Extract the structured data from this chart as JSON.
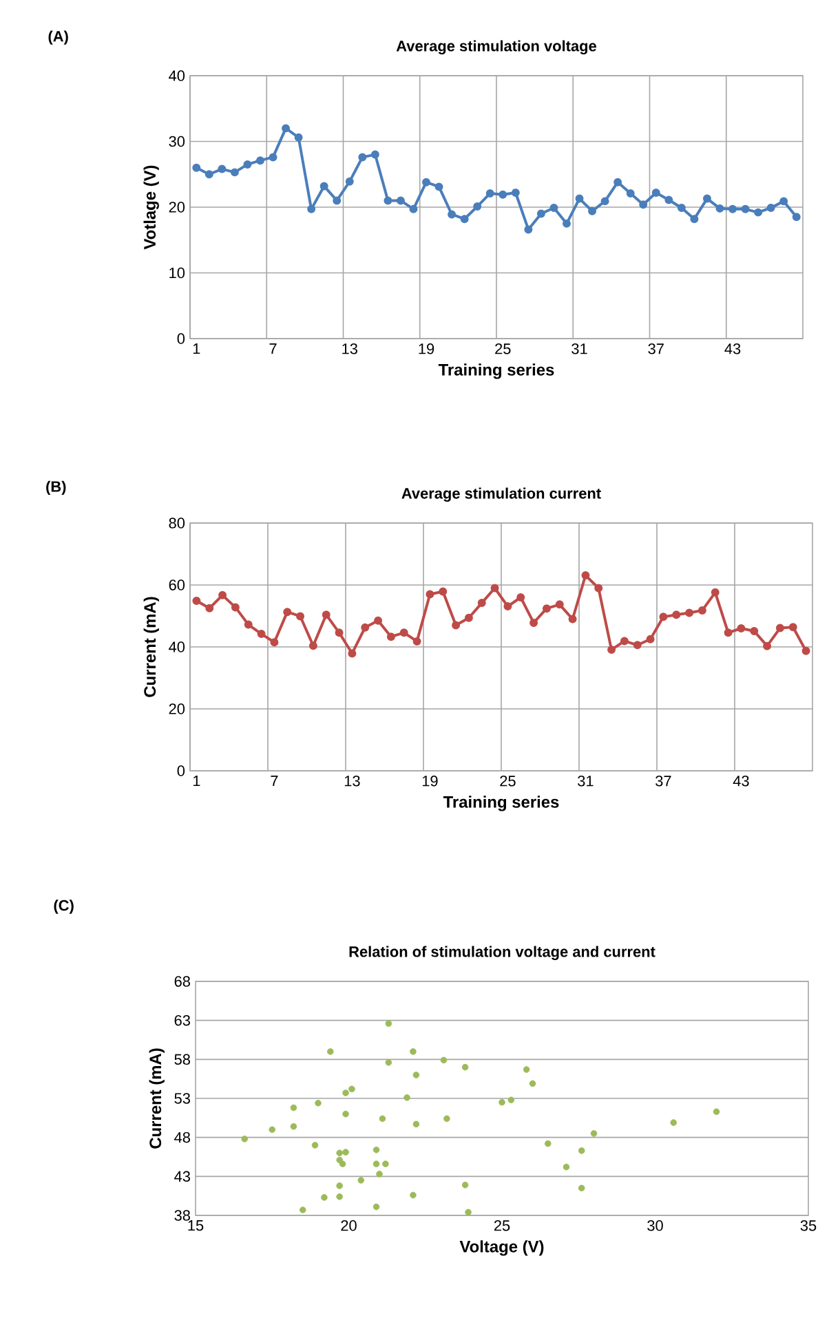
{
  "chart_data": [
    {
      "type": "line",
      "title": "Average  stimulation voltage",
      "xlabel": "Training series",
      "ylabel": "Votlage (V)",
      "annotations": [
        "(A)"
      ],
      "categories": [
        "1",
        null,
        null,
        null,
        null,
        null,
        "7",
        null,
        null,
        null,
        null,
        null,
        "13",
        null,
        null,
        null,
        null,
        null,
        "19",
        null,
        null,
        null,
        null,
        null,
        "25",
        null,
        null,
        null,
        null,
        null,
        "31",
        null,
        null,
        null,
        null,
        null,
        "37",
        null,
        null,
        null,
        null,
        null,
        "43",
        null,
        null,
        null,
        null,
        null
      ],
      "series": [
        {
          "color": "#4a7ebb",
          "values": [
            26.0,
            25.0,
            25.8,
            25.3,
            26.5,
            27.1,
            27.6,
            32.0,
            30.6,
            19.7,
            23.2,
            21.0,
            23.9,
            27.6,
            28.0,
            21.0,
            21.0,
            19.7,
            23.8,
            23.1,
            18.9,
            18.2,
            20.1,
            22.1,
            21.9,
            22.2,
            16.6,
            19.0,
            19.9,
            17.5,
            21.3,
            19.4,
            20.9,
            23.8,
            22.1,
            20.4,
            22.2,
            21.1,
            19.9,
            18.2,
            21.3,
            19.8,
            19.7,
            19.7,
            19.2,
            19.9,
            20.9,
            18.5
          ]
        }
      ],
      "ylim": [
        0,
        40
      ],
      "yticks": [
        0,
        10,
        20,
        30,
        40
      ],
      "grid": true,
      "marker": "circle",
      "line_style": "solid"
    },
    {
      "type": "line",
      "title": "Average stimulation current",
      "xlabel": "Training series",
      "ylabel": "Current (mA)",
      "annotations": [
        "(B)"
      ],
      "categories": [
        "1",
        null,
        null,
        null,
        null,
        null,
        "7",
        null,
        null,
        null,
        null,
        null,
        "13",
        null,
        null,
        null,
        null,
        null,
        "19",
        null,
        null,
        null,
        null,
        null,
        "25",
        null,
        null,
        null,
        null,
        null,
        "31",
        null,
        null,
        null,
        null,
        null,
        "37",
        null,
        null,
        null,
        null,
        null,
        "43",
        null,
        null,
        null,
        null,
        null
      ],
      "series": [
        {
          "color": "#be4b48",
          "values": [
            54.9,
            52.5,
            56.7,
            52.8,
            47.2,
            44.2,
            41.5,
            51.3,
            49.9,
            40.4,
            50.4,
            44.6,
            37.9,
            46.3,
            48.5,
            43.3,
            44.6,
            41.8,
            57.0,
            57.9,
            47.0,
            49.4,
            54.2,
            59.0,
            53.1,
            56.0,
            47.8,
            52.4,
            53.7,
            49.0,
            63.1,
            59.0,
            39.1,
            41.9,
            40.6,
            42.5,
            49.7,
            50.4,
            51.0,
            51.8,
            57.6,
            44.6,
            46.0,
            45.1,
            40.3,
            46.1,
            46.4,
            38.7
          ]
        }
      ],
      "ylim": [
        0,
        80
      ],
      "yticks": [
        0,
        20,
        40,
        60,
        80
      ],
      "grid": true,
      "marker": "circle",
      "line_style": "solid"
    },
    {
      "type": "scatter",
      "title": "Relation of stimulation voltage and current",
      "xlabel": "Voltage (V)",
      "ylabel": "Current (mA)",
      "annotations": [
        "(C)"
      ],
      "series": [
        {
          "color": "#9bbb59",
          "x": [
            26.0,
            25.0,
            25.8,
            25.3,
            26.5,
            27.1,
            27.6,
            32.0,
            30.6,
            19.7,
            23.2,
            20.9,
            23.9,
            27.6,
            28.0,
            21.0,
            21.2,
            19.7,
            23.8,
            23.1,
            18.9,
            18.2,
            20.1,
            22.1,
            21.9,
            22.2,
            16.6,
            19.0,
            19.9,
            17.5,
            21.3,
            19.4,
            20.9,
            23.8,
            22.1,
            20.4,
            22.2,
            21.1,
            19.9,
            18.2,
            21.3,
            19.8,
            19.7,
            19.7,
            19.2,
            19.9,
            20.9,
            18.5
          ],
          "values": [
            54.9,
            52.5,
            56.7,
            52.8,
            47.2,
            44.2,
            41.5,
            51.3,
            49.9,
            40.4,
            50.4,
            44.6,
            38.4,
            46.3,
            48.5,
            43.3,
            44.6,
            41.8,
            57.0,
            57.9,
            47.0,
            49.4,
            54.2,
            59.0,
            53.1,
            56.0,
            47.8,
            52.4,
            53.7,
            49.0,
            62.6,
            59.0,
            39.1,
            41.9,
            40.6,
            42.5,
            49.7,
            50.4,
            51.0,
            51.8,
            57.6,
            44.6,
            46.0,
            45.1,
            40.3,
            46.1,
            46.4,
            38.7
          ]
        }
      ],
      "xlim": [
        15,
        35
      ],
      "xticks": [
        15,
        20,
        25,
        30,
        35
      ],
      "ylim": [
        38,
        68
      ],
      "yticks": [
        38,
        43,
        48,
        53,
        58,
        63,
        68
      ],
      "grid": "y",
      "marker": "circle"
    }
  ]
}
